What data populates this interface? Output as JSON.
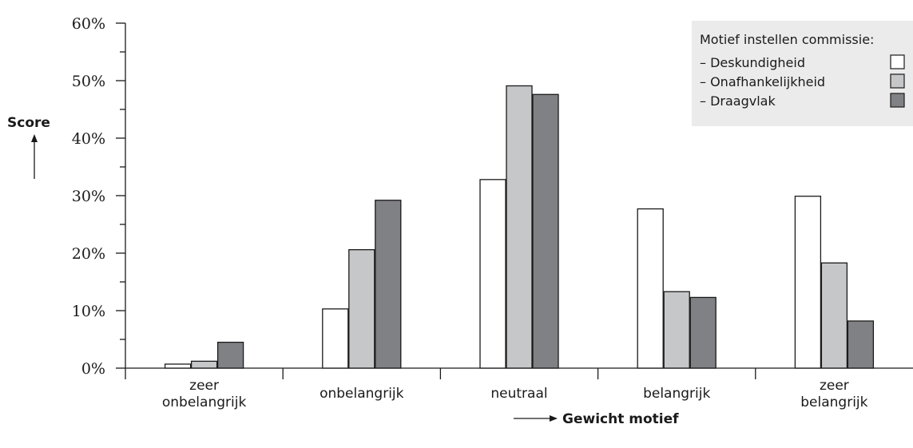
{
  "chart_data": {
    "type": "bar",
    "categories": [
      "zeer\nonbelangrijk",
      "onbelangrijk",
      "neutraal",
      "belangrijk",
      "zeer\nbelangrijk"
    ],
    "series": [
      {
        "name": "Deskundigheid",
        "values": [
          0.7,
          10.3,
          32.8,
          27.7,
          29.9
        ],
        "color": "#ffffff"
      },
      {
        "name": "Onafhankelijkheid",
        "values": [
          1.2,
          20.6,
          49.1,
          13.3,
          18.3
        ],
        "color": "#c6c7c9"
      },
      {
        "name": "Draagvlak",
        "values": [
          4.5,
          29.2,
          47.6,
          12.3,
          8.2
        ],
        "color": "#808185"
      }
    ],
    "ylim": [
      0,
      60
    ],
    "yticks": [
      0,
      10,
      20,
      30,
      40,
      50,
      60
    ],
    "ytick_labels": [
      "0%",
      "10%",
      "20%",
      "30%",
      "40%",
      "50%",
      "60%"
    ],
    "ylabel": "Score",
    "xlabel": "Gewicht motief",
    "legend": {
      "title": "Motief instellen commissie:",
      "prefix": "– ",
      "placement": "top-right",
      "background": "#ebebeb"
    },
    "grid": false
  }
}
